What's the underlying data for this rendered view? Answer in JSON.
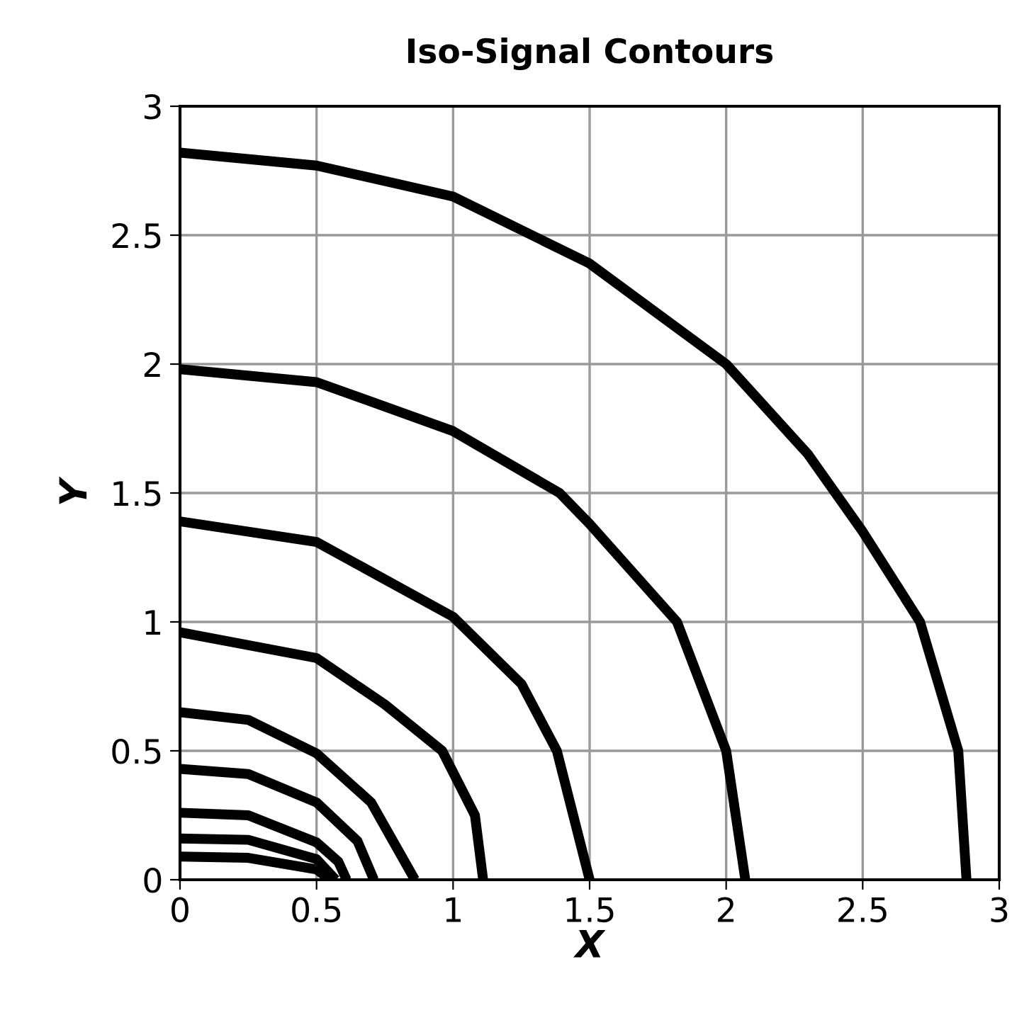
{
  "chart_data": {
    "type": "line",
    "title": "Iso-Signal Contours",
    "xlabel": "X",
    "ylabel": "Y",
    "xlim": [
      0,
      3
    ],
    "ylim": [
      0,
      3
    ],
    "xticks": [
      0,
      0.5,
      1,
      1.5,
      2,
      2.5,
      3
    ],
    "yticks": [
      0,
      0.5,
      1,
      1.5,
      2,
      2.5,
      3
    ],
    "grid": true,
    "marker": "none",
    "line_style": "solid",
    "series": [
      {
        "color": "#000000",
        "x": [
          0,
          0.5,
          1,
          1.5,
          2,
          2.3,
          2.5,
          2.71,
          2.85,
          2.88
        ],
        "values": [
          2.82,
          2.77,
          2.65,
          2.39,
          2.0,
          1.65,
          1.35,
          1.0,
          0.5,
          0
        ]
      },
      {
        "color": "#000000",
        "x": [
          0,
          0.5,
          1,
          1.39,
          1.5,
          1.82,
          2.0,
          2.07
        ],
        "values": [
          1.98,
          1.93,
          1.74,
          1.5,
          1.38,
          1.0,
          0.5,
          0
        ]
      },
      {
        "color": "#000000",
        "x": [
          0,
          0.5,
          1,
          1.25,
          1.38,
          1.5
        ],
        "values": [
          1.39,
          1.31,
          1.02,
          0.76,
          0.5,
          0
        ]
      },
      {
        "color": "#000000",
        "x": [
          0,
          0.5,
          0.75,
          0.96,
          1.08,
          1.11
        ],
        "values": [
          0.96,
          0.86,
          0.68,
          0.5,
          0.25,
          0
        ]
      },
      {
        "color": "#000000",
        "x": [
          0,
          0.25,
          0.5,
          0.7,
          0.86
        ],
        "values": [
          0.65,
          0.62,
          0.49,
          0.3,
          0
        ]
      },
      {
        "color": "#000000",
        "x": [
          0,
          0.25,
          0.5,
          0.65,
          0.71
        ],
        "values": [
          0.43,
          0.41,
          0.3,
          0.15,
          0
        ]
      },
      {
        "color": "#000000",
        "x": [
          0,
          0.25,
          0.5,
          0.58,
          0.61
        ],
        "values": [
          0.26,
          0.25,
          0.145,
          0.07,
          0
        ]
      },
      {
        "color": "#000000",
        "x": [
          0,
          0.25,
          0.5,
          0.57
        ],
        "values": [
          0.16,
          0.155,
          0.08,
          0
        ]
      },
      {
        "color": "#000000",
        "x": [
          0,
          0.25,
          0.5,
          0.55
        ],
        "values": [
          0.09,
          0.085,
          0.04,
          0
        ]
      }
    ]
  }
}
